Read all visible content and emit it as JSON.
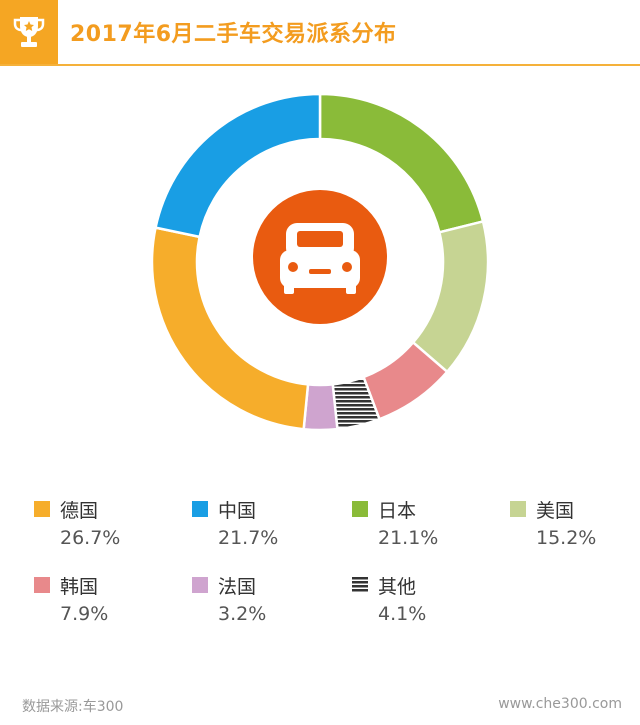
{
  "header": {
    "title": "2017年6月二手车交易派系分布",
    "icon": "trophy-icon"
  },
  "chart_data": {
    "type": "pie",
    "variant": "donut",
    "title": "2017年6月二手车交易派系分布",
    "slices": [
      {
        "name": "日本",
        "value": 21.1,
        "label": "21.1%",
        "color": "#8abb39"
      },
      {
        "name": "美国",
        "value": 15.2,
        "label": "15.2%",
        "color": "#c6d493"
      },
      {
        "name": "韩国",
        "value": 7.9,
        "label": "7.9%",
        "color": "#e8898b"
      },
      {
        "name": "其他",
        "value": 4.1,
        "label": "4.1%",
        "color": "#333333",
        "pattern": "stripes"
      },
      {
        "name": "法国",
        "value": 3.2,
        "label": "3.2%",
        "color": "#cfa4cf"
      },
      {
        "name": "德国",
        "value": 26.7,
        "label": "26.7%",
        "color": "#f6ad2b"
      },
      {
        "name": "中国",
        "value": 21.7,
        "label": "21.7%",
        "color": "#199ee4"
      }
    ],
    "legend_order": [
      "德国",
      "中国",
      "日本",
      "美国",
      "韩国",
      "法国",
      "其他"
    ],
    "center_icon": "car-icon",
    "center_color": "#e95b10"
  },
  "footer": {
    "source": "数据来源:车300",
    "site": "www.che300.com"
  }
}
